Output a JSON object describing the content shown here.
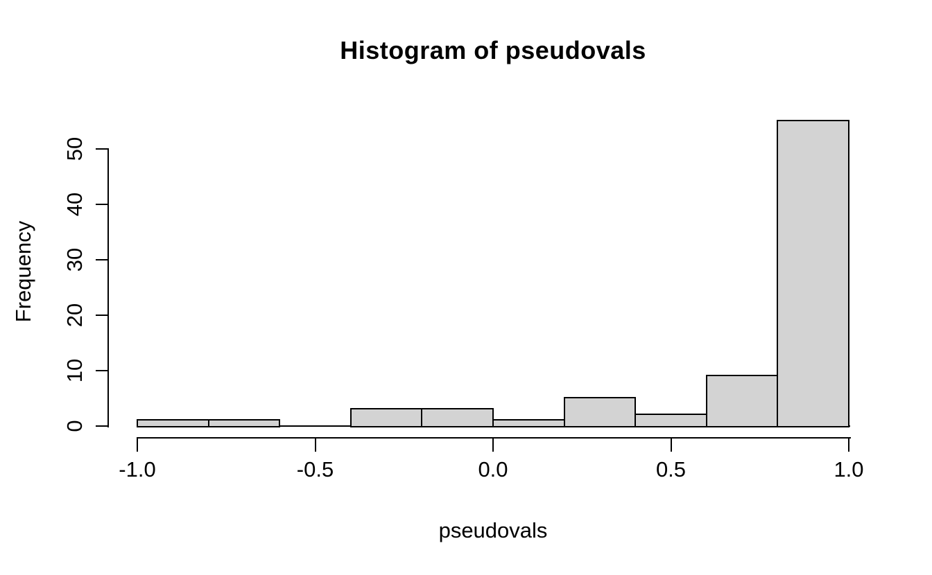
{
  "chart_data": {
    "type": "bar",
    "subtype": "histogram",
    "title": "Histogram of pseudovals",
    "xlabel": "pseudovals",
    "ylabel": "Frequency",
    "bin_edges": [
      -1.0,
      -0.8,
      -0.6,
      -0.4,
      -0.2,
      0.0,
      0.2,
      0.4,
      0.6,
      0.8,
      1.0
    ],
    "counts": [
      1,
      1,
      0,
      3,
      3,
      1,
      5,
      2,
      9,
      55
    ],
    "xlim": [
      -1.0,
      1.0
    ],
    "ylim": [
      0,
      55
    ],
    "x_ticks": [
      {
        "value": -1.0,
        "label": "-1.0"
      },
      {
        "value": -0.5,
        "label": "-0.5"
      },
      {
        "value": 0.0,
        "label": "0.0"
      },
      {
        "value": 0.5,
        "label": "0.5"
      },
      {
        "value": 1.0,
        "label": "1.0"
      }
    ],
    "y_ticks": [
      {
        "value": 0,
        "label": "0"
      },
      {
        "value": 10,
        "label": "10"
      },
      {
        "value": 20,
        "label": "20"
      },
      {
        "value": 30,
        "label": "30"
      },
      {
        "value": 40,
        "label": "40"
      },
      {
        "value": 50,
        "label": "50"
      }
    ],
    "grid": false,
    "legend_position": "none",
    "bar_fill": "#d3d3d3",
    "bar_border": "#000000",
    "background": "#ffffff",
    "text_color": "#000000"
  }
}
